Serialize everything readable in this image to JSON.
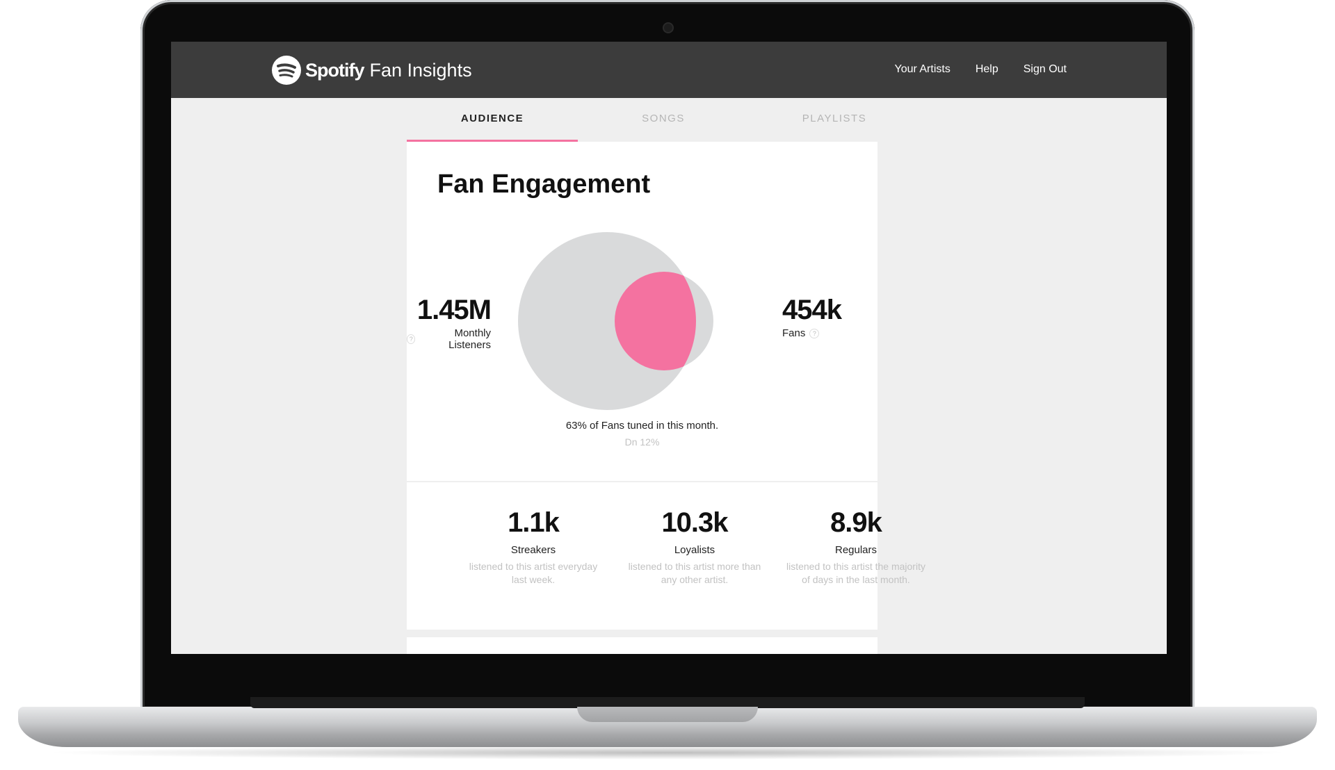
{
  "header": {
    "brand": "Spotify",
    "product": "Fan Insights",
    "nav": [
      "Your Artists",
      "Help",
      "Sign Out"
    ]
  },
  "tabs": [
    {
      "label": "AUDIENCE",
      "active": true
    },
    {
      "label": "SONGS",
      "active": false
    },
    {
      "label": "PLAYLISTS",
      "active": false
    }
  ],
  "engagement": {
    "title": "Fan Engagement",
    "monthly_listeners": {
      "value": "1.45M",
      "label": "Monthly Listeners"
    },
    "fans": {
      "value": "454k",
      "label": "Fans"
    },
    "caption": "63% of Fans tuned in this month.",
    "change": "Dn 12%",
    "overlap_percent": 63
  },
  "stats": [
    {
      "value": "1.1k",
      "name": "Streakers",
      "desc": "listened to this artist everyday last week."
    },
    {
      "value": "10.3k",
      "name": "Loyalists",
      "desc": "listened to this artist more than any other artist."
    },
    {
      "value": "8.9k",
      "name": "Regulars",
      "desc": "listened to this artist the majority of days in the last month."
    }
  ],
  "colors": {
    "accent": "#f472a0",
    "circle": "#d9dadb",
    "topbar": "#3c3c3c"
  },
  "icons": {
    "logo": "spotify-logo-icon",
    "help": "question-mark-icon"
  }
}
